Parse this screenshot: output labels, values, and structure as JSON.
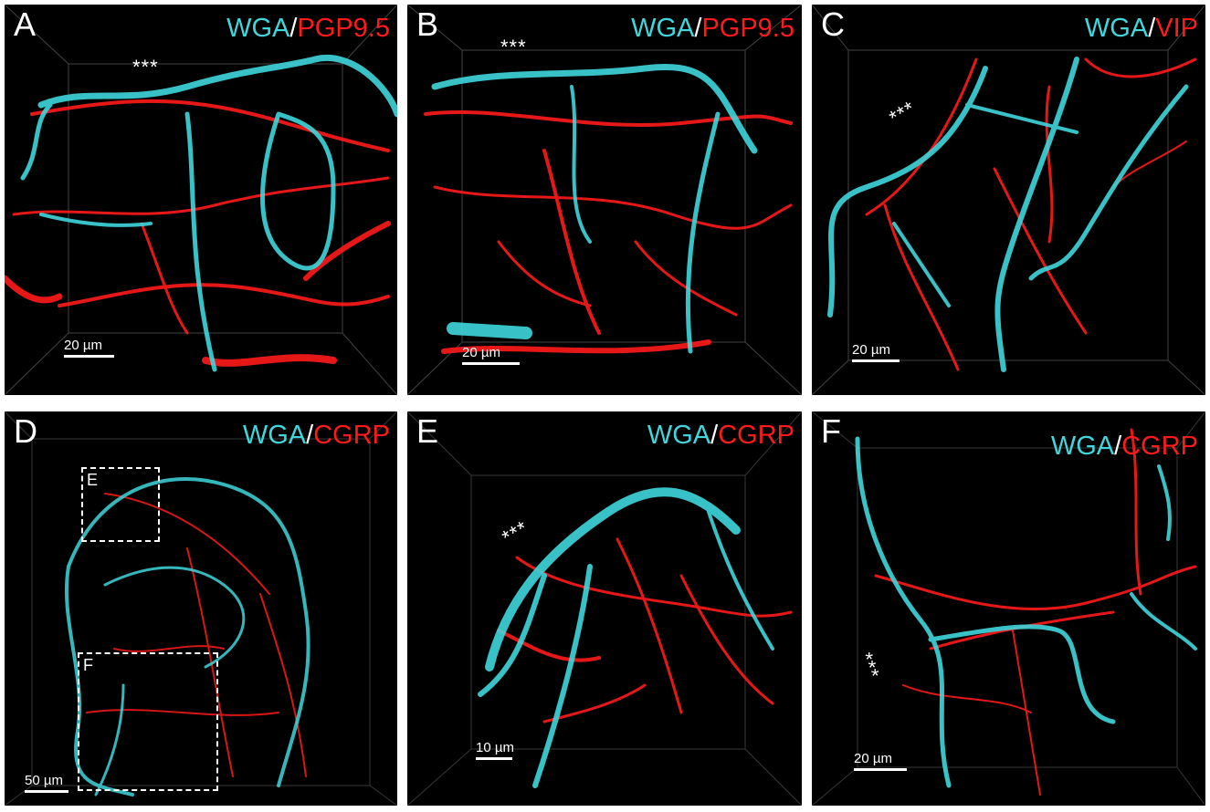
{
  "colors": {
    "wga": "#3fd6dc",
    "marker": "#ff1a1a",
    "separator": "#ffffff",
    "background": "#000000"
  },
  "panels": [
    {
      "letter": "A",
      "wga": "WGA",
      "sep": "/",
      "marker": "PGP9.5",
      "scale": "20 µm",
      "asterisks": "***"
    },
    {
      "letter": "B",
      "wga": "WGA",
      "sep": "/",
      "marker": "PGP9.5",
      "scale": "20 µm",
      "asterisks": "***"
    },
    {
      "letter": "C",
      "wga": "WGA",
      "sep": "/",
      "marker": "VIP",
      "scale": "20 µm",
      "asterisks": "***"
    },
    {
      "letter": "D",
      "wga": "WGA",
      "sep": "/",
      "marker": "CGRP",
      "scale": "50 µm",
      "box_e": "E",
      "box_f": "F"
    },
    {
      "letter": "E",
      "wga": "WGA",
      "sep": "/",
      "marker": "CGRP",
      "scale": "10 µm",
      "asterisks": "***"
    },
    {
      "letter": "F",
      "wga": "WGA",
      "sep": "/",
      "marker": "CGRP",
      "scale": "20 µm",
      "asterisks": "***"
    }
  ]
}
